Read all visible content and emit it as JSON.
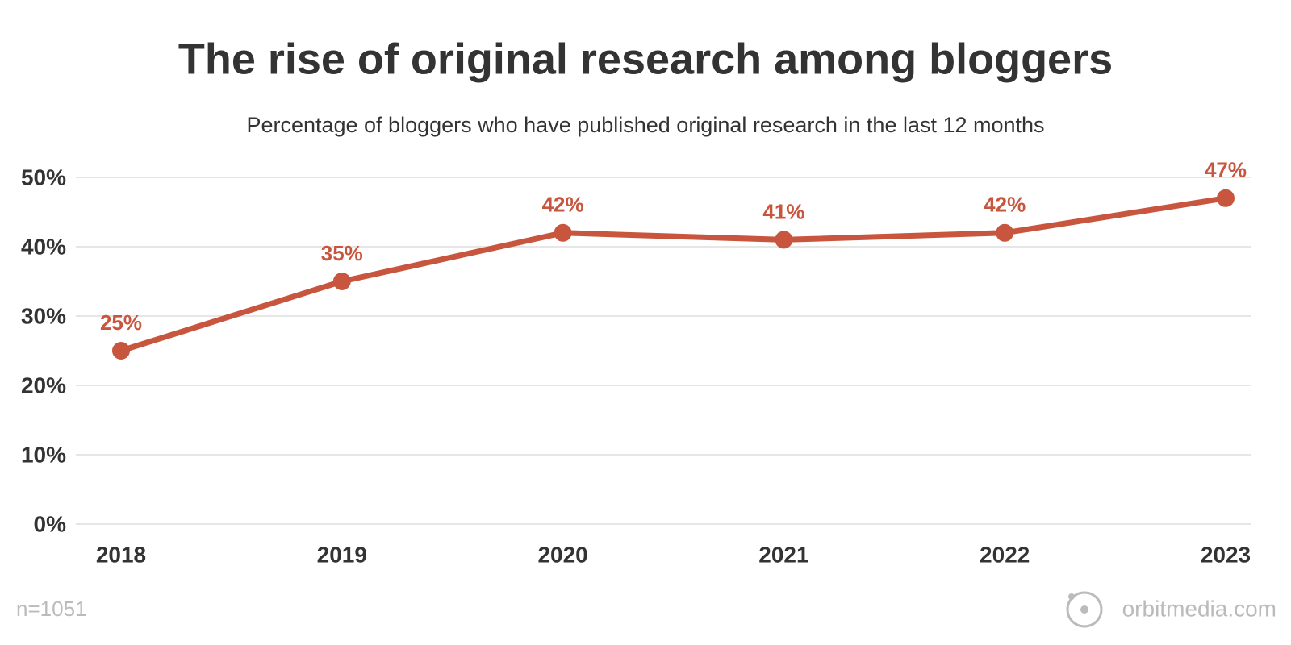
{
  "chart_data": {
    "type": "line",
    "title": "The rise of original research among bloggers",
    "subtitle": "Percentage of bloggers who have published original research in the last 12 months",
    "categories": [
      "2018",
      "2019",
      "2020",
      "2021",
      "2022",
      "2023"
    ],
    "values": [
      25,
      35,
      42,
      41,
      42,
      47
    ],
    "value_labels": [
      "25%",
      "35%",
      "42%",
      "41%",
      "42%",
      "47%"
    ],
    "color": "#c8553d",
    "ylim": [
      0,
      50
    ],
    "yticks": [
      {
        "value": 0,
        "label": "0%"
      },
      {
        "value": 10,
        "label": "10%"
      },
      {
        "value": 20,
        "label": "20%"
      },
      {
        "value": 30,
        "label": "30%"
      },
      {
        "value": 40,
        "label": "40%"
      },
      {
        "value": 50,
        "label": "50%"
      }
    ],
    "grid": true,
    "footnote": "n=1051",
    "source": "orbitmedia.com"
  }
}
